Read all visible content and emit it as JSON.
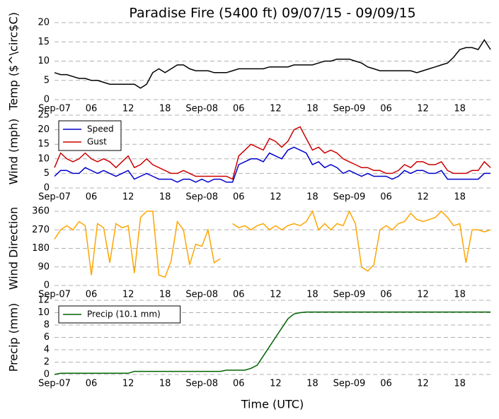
{
  "chart_data": [
    {
      "type": "line",
      "title": "Paradise Fire (5400 ft) 09/07/15 - 09/09/15",
      "ylabel": "Temp ($^\\circ$C)",
      "x": [
        0,
        1,
        2,
        3,
        4,
        5,
        6,
        7,
        8,
        9,
        10,
        11,
        12,
        13,
        14,
        15,
        16,
        17,
        18,
        19,
        20,
        21,
        22,
        23,
        24,
        25,
        26,
        27,
        28,
        29,
        30,
        31,
        32,
        33,
        34,
        35,
        36,
        37,
        38,
        39,
        40,
        41,
        42,
        43,
        44,
        45,
        46,
        47,
        48,
        49,
        50,
        51,
        52,
        53,
        54,
        55,
        56,
        57,
        58,
        59,
        60,
        61,
        62,
        63,
        64,
        65,
        66,
        67,
        68,
        69,
        70,
        71
      ],
      "values": [
        7,
        6.5,
        6.5,
        6,
        5.5,
        5.5,
        5,
        5,
        4.5,
        4,
        4,
        4,
        4,
        4,
        3,
        4,
        7,
        8,
        7,
        8,
        9,
        9,
        8,
        7.5,
        7.5,
        7.5,
        7,
        7,
        7,
        7.5,
        8,
        8,
        8,
        8,
        8,
        8.5,
        8.5,
        8.5,
        8.5,
        9,
        9,
        9,
        9,
        9.5,
        10,
        10,
        10.5,
        10.5,
        10.5,
        10,
        9.5,
        8.5,
        8,
        7.5,
        7.5,
        7.5,
        7.5,
        7.5,
        7.5,
        7,
        7.5,
        8,
        8.5,
        9,
        9.5,
        11,
        13,
        13.5,
        13.5,
        13,
        15.5,
        13
      ],
      "color": "#000000",
      "xlim": [
        0,
        71
      ],
      "xticks": [
        {
          "value": 0,
          "label": "Sep-07"
        },
        {
          "value": 6,
          "label": "06"
        },
        {
          "value": 12,
          "label": "12"
        },
        {
          "value": 18,
          "label": "18"
        },
        {
          "value": 24,
          "label": "Sep-08"
        },
        {
          "value": 30,
          "label": "06"
        },
        {
          "value": 36,
          "label": "12"
        },
        {
          "value": 42,
          "label": "18"
        },
        {
          "value": 48,
          "label": "Sep-09"
        },
        {
          "value": 54,
          "label": "06"
        },
        {
          "value": 60,
          "label": "12"
        },
        {
          "value": 66,
          "label": "18"
        }
      ],
      "ylim": [
        0,
        20
      ],
      "yticks": [
        0,
        5,
        10,
        15,
        20
      ],
      "grid": true
    },
    {
      "type": "line",
      "ylabel": "Wind (mph)",
      "legend": "upper left",
      "x": [
        0,
        1,
        2,
        3,
        4,
        5,
        6,
        7,
        8,
        9,
        10,
        11,
        12,
        13,
        14,
        15,
        16,
        17,
        18,
        19,
        20,
        21,
        22,
        23,
        24,
        25,
        26,
        27,
        28,
        29,
        30,
        31,
        32,
        33,
        34,
        35,
        36,
        37,
        38,
        39,
        40,
        41,
        42,
        43,
        44,
        45,
        46,
        47,
        48,
        49,
        50,
        51,
        52,
        53,
        54,
        55,
        56,
        57,
        58,
        59,
        60,
        61,
        62,
        63,
        64,
        65,
        66,
        67,
        68,
        69,
        70,
        71
      ],
      "series": [
        {
          "name": "Speed",
          "color": "#0000cc",
          "values": [
            4,
            6,
            6,
            5,
            5,
            7,
            6,
            5,
            6,
            5,
            4,
            5,
            6,
            3,
            4,
            5,
            4,
            3,
            3,
            3,
            2,
            3,
            3,
            2,
            3,
            2,
            3,
            3,
            2,
            2,
            8,
            9,
            10,
            10,
            9,
            12,
            11,
            10,
            13,
            14,
            13,
            12,
            8,
            9,
            7,
            8,
            7,
            5,
            6,
            5,
            4,
            5,
            4,
            4,
            4,
            3,
            4,
            6,
            5,
            6,
            6,
            5,
            5,
            6,
            3,
            3,
            3,
            3,
            3,
            3,
            5,
            5
          ]
        },
        {
          "name": "Gust",
          "color": "#cc0000",
          "values": [
            7,
            12,
            10,
            9,
            10,
            12,
            10,
            9,
            10,
            9,
            7,
            9,
            11,
            7,
            8,
            10,
            8,
            7,
            6,
            5,
            5,
            6,
            5,
            4,
            4,
            4,
            4,
            4,
            4,
            3,
            11,
            13,
            15,
            14,
            13,
            17,
            16,
            14,
            16,
            20,
            21,
            17,
            13,
            14,
            12,
            13,
            12,
            10,
            9,
            8,
            7,
            7,
            6,
            6,
            5,
            5,
            6,
            8,
            7,
            9,
            9,
            8,
            8,
            9,
            6,
            5,
            5,
            5,
            6,
            6,
            9,
            7
          ]
        }
      ],
      "xlim": [
        0,
        71
      ],
      "xticks": [
        {
          "value": 0,
          "label": "Sep-07"
        },
        {
          "value": 6,
          "label": "06"
        },
        {
          "value": 12,
          "label": "12"
        },
        {
          "value": 18,
          "label": "18"
        },
        {
          "value": 24,
          "label": "Sep-08"
        },
        {
          "value": 30,
          "label": "06"
        },
        {
          "value": 36,
          "label": "12"
        },
        {
          "value": 42,
          "label": "18"
        },
        {
          "value": 48,
          "label": "Sep-09"
        },
        {
          "value": 54,
          "label": "06"
        },
        {
          "value": 60,
          "label": "12"
        },
        {
          "value": 66,
          "label": "18"
        }
      ],
      "ylim": [
        0,
        25
      ],
      "yticks": [
        0,
        5,
        10,
        15,
        20,
        25
      ],
      "grid": true
    },
    {
      "type": "line",
      "ylabel": "Wind Direction",
      "x": [
        0,
        1,
        2,
        3,
        4,
        5,
        6,
        7,
        8,
        9,
        10,
        11,
        12,
        13,
        14,
        15,
        16,
        17,
        18,
        19,
        20,
        21,
        22,
        23,
        24,
        25,
        26,
        27,
        28,
        29,
        30,
        31,
        32,
        33,
        34,
        35,
        36,
        37,
        38,
        39,
        40,
        41,
        42,
        43,
        44,
        45,
        46,
        47,
        48,
        49,
        50,
        51,
        52,
        53,
        54,
        55,
        56,
        57,
        58,
        59,
        60,
        61,
        62,
        63,
        64,
        65,
        66,
        67,
        68,
        69,
        70,
        71
      ],
      "values": [
        225,
        270,
        290,
        270,
        310,
        290,
        50,
        300,
        280,
        110,
        300,
        280,
        290,
        60,
        330,
        360,
        360,
        50,
        40,
        120,
        310,
        270,
        100,
        200,
        190,
        270,
        110,
        130,
        null,
        300,
        280,
        290,
        270,
        290,
        300,
        270,
        290,
        270,
        290,
        300,
        290,
        310,
        360,
        270,
        300,
        270,
        300,
        290,
        360,
        300,
        90,
        70,
        100,
        270,
        290,
        270,
        300,
        310,
        350,
        320,
        310,
        320,
        330,
        360,
        330,
        290,
        300,
        110,
        270,
        270,
        260,
        270
      ],
      "color": "#ffa500",
      "xlim": [
        0,
        71
      ],
      "xticks": [
        {
          "value": 0,
          "label": "Sep-07"
        },
        {
          "value": 6,
          "label": "06"
        },
        {
          "value": 12,
          "label": "12"
        },
        {
          "value": 18,
          "label": "18"
        },
        {
          "value": 24,
          "label": "Sep-08"
        },
        {
          "value": 30,
          "label": "06"
        },
        {
          "value": 36,
          "label": "12"
        },
        {
          "value": 42,
          "label": "18"
        },
        {
          "value": 48,
          "label": "Sep-09"
        },
        {
          "value": 54,
          "label": "06"
        },
        {
          "value": 60,
          "label": "12"
        },
        {
          "value": 66,
          "label": "18"
        }
      ],
      "ylim": [
        0,
        360
      ],
      "yticks": [
        0,
        90,
        180,
        270,
        360
      ],
      "grid": true
    },
    {
      "type": "line",
      "ylabel": "Precip (mm)",
      "xlabel": "Time (UTC)",
      "legend": "upper left",
      "x": [
        0,
        1,
        2,
        3,
        4,
        5,
        6,
        7,
        8,
        9,
        10,
        11,
        12,
        13,
        14,
        15,
        16,
        17,
        18,
        19,
        20,
        21,
        22,
        23,
        24,
        25,
        26,
        27,
        28,
        29,
        30,
        31,
        32,
        33,
        34,
        35,
        36,
        37,
        38,
        39,
        40,
        41,
        42,
        43,
        44,
        45,
        46,
        47,
        48,
        49,
        50,
        51,
        52,
        53,
        54,
        55,
        56,
        57,
        58,
        59,
        60,
        61,
        62,
        63,
        64,
        65,
        66,
        67,
        68,
        69,
        70,
        71
      ],
      "series": [
        {
          "name": "Precip (10.1 mm)",
          "color": "#006400",
          "values": [
            0,
            0.2,
            0.2,
            0.2,
            0.2,
            0.2,
            0.2,
            0.2,
            0.2,
            0.2,
            0.2,
            0.2,
            0.2,
            0.5,
            0.5,
            0.5,
            0.5,
            0.5,
            0.5,
            0.5,
            0.5,
            0.5,
            0.5,
            0.5,
            0.5,
            0.5,
            0.5,
            0.5,
            0.7,
            0.7,
            0.7,
            0.7,
            1,
            1.5,
            3,
            4.5,
            6,
            7.5,
            9,
            9.8,
            10,
            10.1,
            10.1,
            10.1,
            10.1,
            10.1,
            10.1,
            10.1,
            10.1,
            10.1,
            10.1,
            10.1,
            10.1,
            10.1,
            10.1,
            10.1,
            10.1,
            10.1,
            10.1,
            10.1,
            10.1,
            10.1,
            10.1,
            10.1,
            10.1,
            10.1,
            10.1,
            10.1,
            10.1,
            10.1,
            10.1,
            10.1
          ]
        }
      ],
      "xlim": [
        0,
        71
      ],
      "xticks": [
        {
          "value": 0,
          "label": "Sep-07"
        },
        {
          "value": 6,
          "label": "06"
        },
        {
          "value": 12,
          "label": "12"
        },
        {
          "value": 18,
          "label": "18"
        },
        {
          "value": 24,
          "label": "Sep-08"
        },
        {
          "value": 30,
          "label": "06"
        },
        {
          "value": 36,
          "label": "12"
        },
        {
          "value": 42,
          "label": "18"
        },
        {
          "value": 48,
          "label": "Sep-09"
        },
        {
          "value": 54,
          "label": "06"
        },
        {
          "value": 60,
          "label": "12"
        },
        {
          "value": 66,
          "label": "18"
        }
      ],
      "ylim": [
        0,
        12
      ],
      "yticks": [
        0,
        2,
        4,
        6,
        8,
        10,
        12
      ],
      "grid": true
    }
  ]
}
